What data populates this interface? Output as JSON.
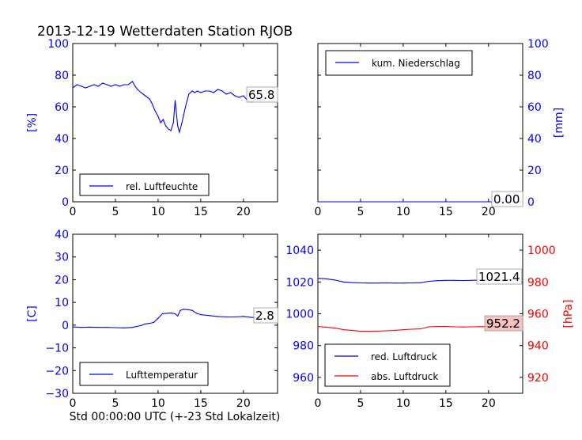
{
  "figure": {
    "title": "2013-12-19 Wetterdaten Station RJOB",
    "xlabel": "Std 00:00:00 UTC (+-23 Std Lokalzeit)"
  },
  "colors": {
    "blue": "#0000ff",
    "red": "#ff0000",
    "black": "#000000",
    "label_bg_red": "#f4b8b8"
  },
  "chart_data": [
    {
      "id": "humidity",
      "type": "line",
      "xlim": [
        0,
        24
      ],
      "ylim": [
        0,
        100
      ],
      "xticks": [
        "0",
        "5",
        "10",
        "15",
        "20"
      ],
      "yticks": [
        "0",
        "20",
        "40",
        "60",
        "80",
        "100"
      ],
      "ylabel": "[%]",
      "legend": {
        "placement": "lower-left",
        "entries": [
          "rel. Luftfeuchte"
        ]
      },
      "last_value_label": "65.8",
      "series": [
        {
          "name": "rel. Luftfeuchte",
          "color": "#0000ff",
          "x": [
            0,
            0.5,
            1,
            1.5,
            2,
            2.5,
            3,
            3.5,
            4,
            4.5,
            5,
            5.5,
            6,
            6.5,
            7,
            7.3,
            7.6,
            8,
            8.5,
            9,
            9.3,
            9.6,
            10,
            10.3,
            10.6,
            10.9,
            11.2,
            11.5,
            11.8,
            12,
            12.3,
            12.5,
            12.8,
            13,
            13.3,
            13.6,
            14,
            14.3,
            14.6,
            15,
            15.5,
            16,
            16.5,
            17,
            17.5,
            18,
            18.5,
            19,
            19.5,
            20,
            20.5,
            21,
            21.5,
            22,
            22.5,
            23
          ],
          "y": [
            72,
            74,
            73,
            72,
            73,
            74,
            73,
            75,
            74,
            73,
            74,
            73,
            74,
            74,
            76,
            73,
            71,
            69,
            67,
            65,
            62,
            58,
            54,
            50,
            52,
            48,
            46,
            45,
            50,
            64,
            48,
            44,
            50,
            55,
            62,
            68,
            70,
            69,
            70,
            69,
            70,
            70,
            69,
            71,
            70,
            68,
            69,
            67,
            66,
            67,
            64,
            63,
            65,
            64,
            65,
            66
          ]
        }
      ]
    },
    {
      "id": "precipitation",
      "type": "line",
      "xlim": [
        0,
        24
      ],
      "ylim": [
        0,
        100
      ],
      "xticks": [
        "0",
        "5",
        "10",
        "15",
        "20"
      ],
      "yticks": [
        "0",
        "20",
        "40",
        "60",
        "80",
        "100"
      ],
      "ylabel": "[mm]",
      "legend": {
        "placement": "upper-left",
        "entries": [
          "kum. Niederschlag"
        ]
      },
      "last_value_label": "0.00",
      "series": [
        {
          "name": "kum. Niederschlag",
          "color": "#0000ff",
          "x": [
            0,
            23
          ],
          "y": [
            0,
            0
          ]
        }
      ]
    },
    {
      "id": "temperature",
      "type": "line",
      "xlim": [
        0,
        24
      ],
      "ylim": [
        -30,
        40
      ],
      "xticks": [
        "0",
        "5",
        "10",
        "15",
        "20"
      ],
      "yticks": [
        "−30",
        "−20",
        "−10",
        "0",
        "10",
        "20",
        "30",
        "40"
      ],
      "ylabel": "[C]",
      "legend": {
        "placement": "lower-left",
        "entries": [
          "Lufttemperatur"
        ]
      },
      "last_value_label": "2.8",
      "series": [
        {
          "name": "Lufttemperatur",
          "color": "#0000ff",
          "x": [
            0,
            1,
            2,
            3,
            4,
            5,
            6,
            7,
            8,
            8.5,
            9,
            9.5,
            10,
            10.5,
            11,
            11.5,
            12,
            12.3,
            12.6,
            13,
            13.5,
            14,
            14.5,
            15,
            16,
            17,
            18,
            19,
            20,
            21,
            22,
            23
          ],
          "y": [
            -0.8,
            -1,
            -0.9,
            -1,
            -1,
            -1.1,
            -1.2,
            -1,
            -0.2,
            0.5,
            0.8,
            1.2,
            3,
            5,
            5.2,
            5.3,
            5,
            4,
            6.5,
            7,
            6.8,
            6.5,
            5.2,
            4.6,
            4.2,
            3.8,
            3.6,
            3.6,
            3.8,
            3.4,
            3,
            2.8
          ]
        }
      ]
    },
    {
      "id": "pressure",
      "type": "line",
      "xlim": [
        0,
        24
      ],
      "ylim_left": [
        950,
        1050
      ],
      "ylim_right": [
        910,
        1010
      ],
      "xticks": [
        "0",
        "5",
        "10",
        "15",
        "20"
      ],
      "yticks_left": [
        "960",
        "980",
        "1000",
        "1020",
        "1040"
      ],
      "yticks_right": [
        "920",
        "940",
        "960",
        "980",
        "1000"
      ],
      "ylabel_right": "[hPa]",
      "legend": {
        "placement": "lower-left",
        "entries": [
          "red. Luftdruck",
          "abs. Luftdruck"
        ]
      },
      "last_value_labels": [
        "1021.4",
        "952.2"
      ],
      "series": [
        {
          "name": "red. Luftdruck",
          "color": "#0000ff",
          "axis": "left",
          "x": [
            0,
            1,
            2,
            3,
            4,
            5,
            6,
            7,
            8,
            9,
            10,
            11,
            12,
            13,
            14,
            15,
            16,
            17,
            18,
            19,
            20,
            21,
            22,
            23
          ],
          "y": [
            1022.3,
            1022.0,
            1021.2,
            1020.0,
            1019.6,
            1019.4,
            1019.3,
            1019.3,
            1019.4,
            1019.3,
            1019.3,
            1019.4,
            1019.5,
            1020.4,
            1020.8,
            1021.0,
            1021.0,
            1020.9,
            1021.0,
            1021.2,
            1021.3,
            1021.3,
            1021.4,
            1021.4
          ]
        },
        {
          "name": "abs. Luftdruck",
          "color": "#ff0000",
          "axis": "right",
          "x": [
            0,
            1,
            2,
            3,
            4,
            5,
            6,
            7,
            8,
            9,
            10,
            11,
            12,
            13,
            14,
            15,
            16,
            17,
            18,
            19,
            20,
            21,
            22,
            23
          ],
          "y": [
            952.0,
            951.6,
            951.0,
            950.0,
            949.5,
            949.0,
            949.0,
            949.1,
            949.3,
            949.5,
            950.0,
            950.3,
            950.5,
            951.8,
            952.0,
            952.0,
            951.8,
            951.7,
            951.8,
            951.9,
            952.0,
            952.0,
            952.1,
            952.2
          ]
        }
      ]
    }
  ]
}
